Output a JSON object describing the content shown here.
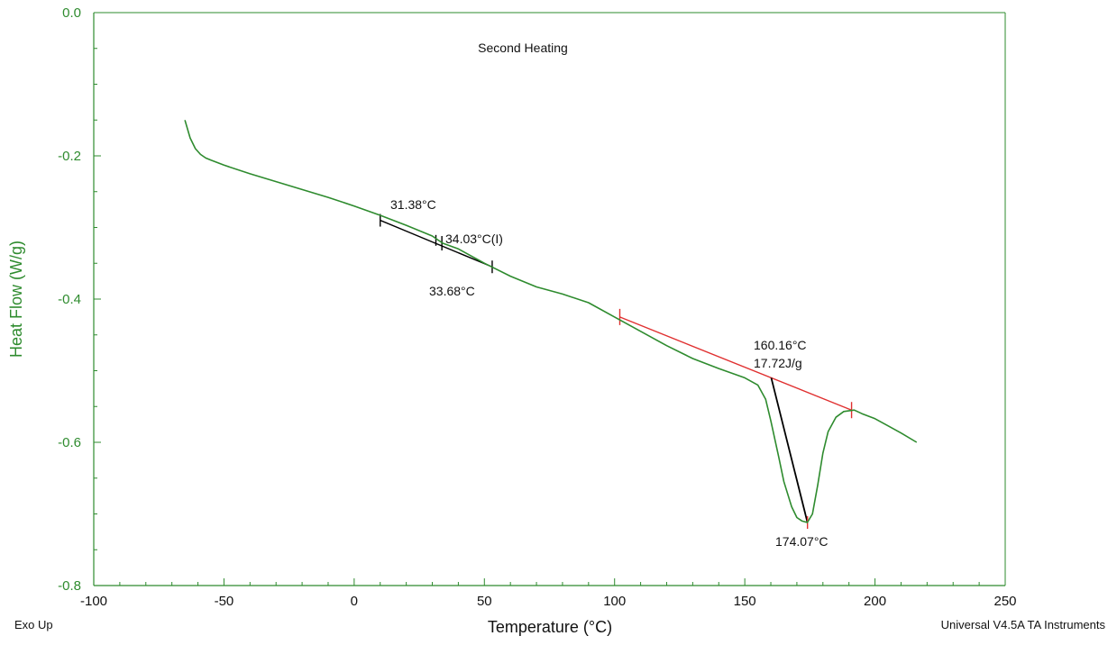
{
  "chart_data": {
    "type": "line",
    "title": "Second Heating",
    "xlabel": "Temperature (°C)",
    "ylabel": "Heat Flow (W/g)",
    "xlim": [
      -100,
      250
    ],
    "ylim": [
      -0.8,
      0.0
    ],
    "x_ticks": [
      "-100",
      "-50",
      "0",
      "50",
      "100",
      "150",
      "200",
      "250"
    ],
    "y_ticks": [
      "0.0",
      "-0.2",
      "-0.4",
      "-0.6",
      "-0.8"
    ],
    "footer_left": "Exo Up",
    "footer_right": "Universal V4.5A TA Instruments",
    "grid": false,
    "series": [
      {
        "color": "#2e8b2e",
        "x": [
          -65,
          -63,
          -61,
          -59,
          -57,
          -55,
          -50,
          -40,
          -30,
          -20,
          -10,
          0,
          10,
          20,
          30,
          34,
          40,
          50,
          60,
          70,
          80,
          90,
          100,
          110,
          120,
          130,
          140,
          150,
          155,
          158,
          160,
          163,
          165,
          168,
          170,
          172,
          174,
          176,
          178,
          180,
          182,
          185,
          188,
          192,
          195,
          200,
          205,
          210,
          216
        ],
        "y": [
          -0.15,
          -0.175,
          -0.19,
          -0.198,
          -0.203,
          -0.206,
          -0.213,
          -0.225,
          -0.236,
          -0.247,
          -0.258,
          -0.27,
          -0.283,
          -0.297,
          -0.312,
          -0.322,
          -0.33,
          -0.35,
          -0.368,
          -0.383,
          -0.393,
          -0.405,
          -0.425,
          -0.445,
          -0.465,
          -0.483,
          -0.497,
          -0.51,
          -0.52,
          -0.54,
          -0.57,
          -0.62,
          -0.655,
          -0.69,
          -0.705,
          -0.71,
          -0.712,
          -0.7,
          -0.66,
          -0.615,
          -0.585,
          -0.565,
          -0.557,
          -0.555,
          -0.56,
          -0.567,
          -0.577,
          -0.587,
          -0.6
        ]
      }
    ],
    "annotations": [
      {
        "text": "31.38°C",
        "x": 31.38
      },
      {
        "text": "34.03°C(I)",
        "x": 34.03
      },
      {
        "text": "33.68°C",
        "x": 33.68
      },
      {
        "text": "160.16°C",
        "x": 160.16
      },
      {
        "text": "17.72J/g"
      },
      {
        "text": "174.07°C",
        "x": 174.07
      }
    ],
    "glass_transition_segment": {
      "x": [
        10,
        53
      ],
      "y": [
        -0.29,
        -0.355
      ],
      "color": "#000000"
    },
    "baseline": {
      "x": [
        102,
        191
      ],
      "y": [
        -0.425,
        -0.555
      ],
      "color": "#e03030"
    },
    "melting_tangent": {
      "x": [
        160.16,
        174.07
      ],
      "y": [
        -0.51,
        -0.712
      ],
      "color": "#000000"
    }
  }
}
